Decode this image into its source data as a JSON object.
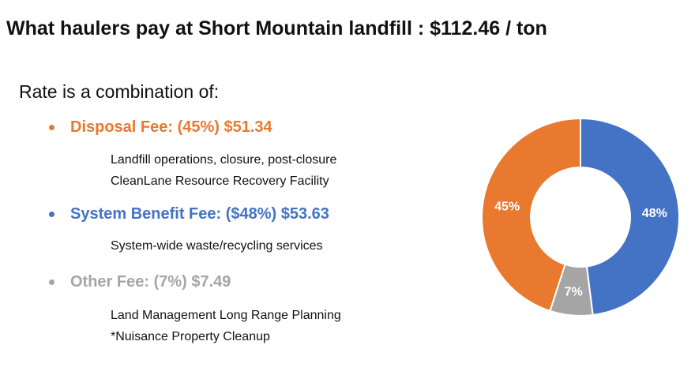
{
  "title": "What haulers pay at Short Mountain landfill : $112.46 / ton",
  "intro": "Rate is a combination of:",
  "fees": [
    {
      "label": "Disposal Fee: (45%) $51.34",
      "color": "#E8792F",
      "details": [
        "Landfill operations, closure, post-closure",
        "CleanLane Resource Recovery Facility"
      ]
    },
    {
      "label": "System Benefit Fee: ($48%) $53.63",
      "color": "#4472C4",
      "details": [
        "System-wide waste/recycling services"
      ]
    },
    {
      "label": "Other Fee: (7%) $7.49",
      "color": "#A5A5A5",
      "details": [
        "Land Management Long Range Planning",
        "*Nuisance Property Cleanup"
      ]
    }
  ],
  "chart_data": {
    "type": "pie",
    "donut": true,
    "categories": [
      "System Benefit Fee",
      "Other Fee",
      "Disposal Fee"
    ],
    "values": [
      48,
      7,
      45
    ],
    "labels": [
      "48%",
      "7%",
      "45%"
    ],
    "colors": [
      "#4472C4",
      "#A5A5A5",
      "#E8792F"
    ]
  }
}
